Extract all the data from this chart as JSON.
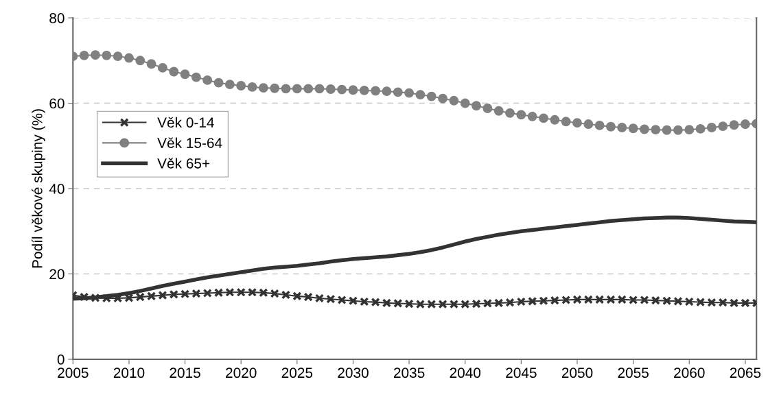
{
  "chart_data": {
    "type": "line",
    "ylabel": "Podíl věkové skupiny (%)",
    "x": [
      2005,
      2006,
      2007,
      2008,
      2009,
      2010,
      2011,
      2012,
      2013,
      2014,
      2015,
      2016,
      2017,
      2018,
      2019,
      2020,
      2021,
      2022,
      2023,
      2024,
      2025,
      2026,
      2027,
      2028,
      2029,
      2030,
      2031,
      2032,
      2033,
      2034,
      2035,
      2036,
      2037,
      2038,
      2039,
      2040,
      2041,
      2042,
      2043,
      2044,
      2045,
      2046,
      2047,
      2048,
      2049,
      2050,
      2051,
      2052,
      2053,
      2054,
      2055,
      2056,
      2057,
      2058,
      2059,
      2060,
      2061,
      2062,
      2063,
      2064,
      2065,
      2066
    ],
    "series": [
      {
        "name": "Věk 0-14",
        "color": "#333333",
        "marker": "cross",
        "values": [
          15.0,
          14.6,
          14.4,
          14.3,
          14.3,
          14.4,
          14.6,
          14.8,
          15.0,
          15.2,
          15.3,
          15.4,
          15.5,
          15.6,
          15.7,
          15.7,
          15.7,
          15.6,
          15.4,
          15.1,
          14.8,
          14.6,
          14.3,
          14.1,
          13.9,
          13.7,
          13.5,
          13.4,
          13.2,
          13.1,
          13.0,
          12.9,
          12.9,
          12.9,
          12.9,
          12.9,
          13.0,
          13.1,
          13.2,
          13.3,
          13.5,
          13.6,
          13.7,
          13.8,
          13.9,
          14.0,
          14.0,
          14.0,
          14.0,
          14.0,
          13.9,
          13.9,
          13.8,
          13.7,
          13.6,
          13.5,
          13.4,
          13.3,
          13.3,
          13.2,
          13.2,
          13.2
        ]
      },
      {
        "name": "Věk 15-64",
        "color": "#808080",
        "marker": "circle",
        "values": [
          71.0,
          71.2,
          71.3,
          71.2,
          71.0,
          70.6,
          70.0,
          69.2,
          68.3,
          67.4,
          66.8,
          66.1,
          65.4,
          64.8,
          64.4,
          64.1,
          63.8,
          63.6,
          63.5,
          63.4,
          63.4,
          63.4,
          63.4,
          63.3,
          63.2,
          63.1,
          63.0,
          62.9,
          62.8,
          62.6,
          62.4,
          62.0,
          61.6,
          61.1,
          60.6,
          60.0,
          59.4,
          58.8,
          58.2,
          57.7,
          57.3,
          56.9,
          56.5,
          56.1,
          55.7,
          55.4,
          55.1,
          54.8,
          54.5,
          54.3,
          54.1,
          53.9,
          53.8,
          53.7,
          53.7,
          53.8,
          54.0,
          54.3,
          54.6,
          54.9,
          55.1,
          55.2
        ]
      },
      {
        "name": "Věk 65+",
        "color": "#333333",
        "marker": "none",
        "values": [
          14.2,
          14.3,
          14.5,
          14.8,
          15.1,
          15.5,
          16.0,
          16.6,
          17.2,
          17.7,
          18.2,
          18.7,
          19.2,
          19.6,
          20.0,
          20.4,
          20.8,
          21.2,
          21.5,
          21.7,
          21.9,
          22.2,
          22.5,
          22.9,
          23.2,
          23.5,
          23.7,
          23.9,
          24.1,
          24.4,
          24.7,
          25.1,
          25.6,
          26.2,
          26.9,
          27.6,
          28.2,
          28.7,
          29.2,
          29.6,
          30.0,
          30.3,
          30.6,
          30.9,
          31.2,
          31.5,
          31.8,
          32.1,
          32.4,
          32.6,
          32.8,
          33.0,
          33.1,
          33.2,
          33.2,
          33.1,
          32.9,
          32.7,
          32.5,
          32.3,
          32.2,
          32.1
        ]
      }
    ],
    "xlim": [
      2005,
      2066
    ],
    "xticks": [
      2005,
      2010,
      2015,
      2020,
      2025,
      2030,
      2035,
      2040,
      2045,
      2050,
      2055,
      2060,
      2065
    ],
    "ylim": [
      0,
      80
    ],
    "yticks": [
      0,
      20,
      40,
      60,
      80
    ],
    "grid": "y",
    "legend": "left"
  }
}
